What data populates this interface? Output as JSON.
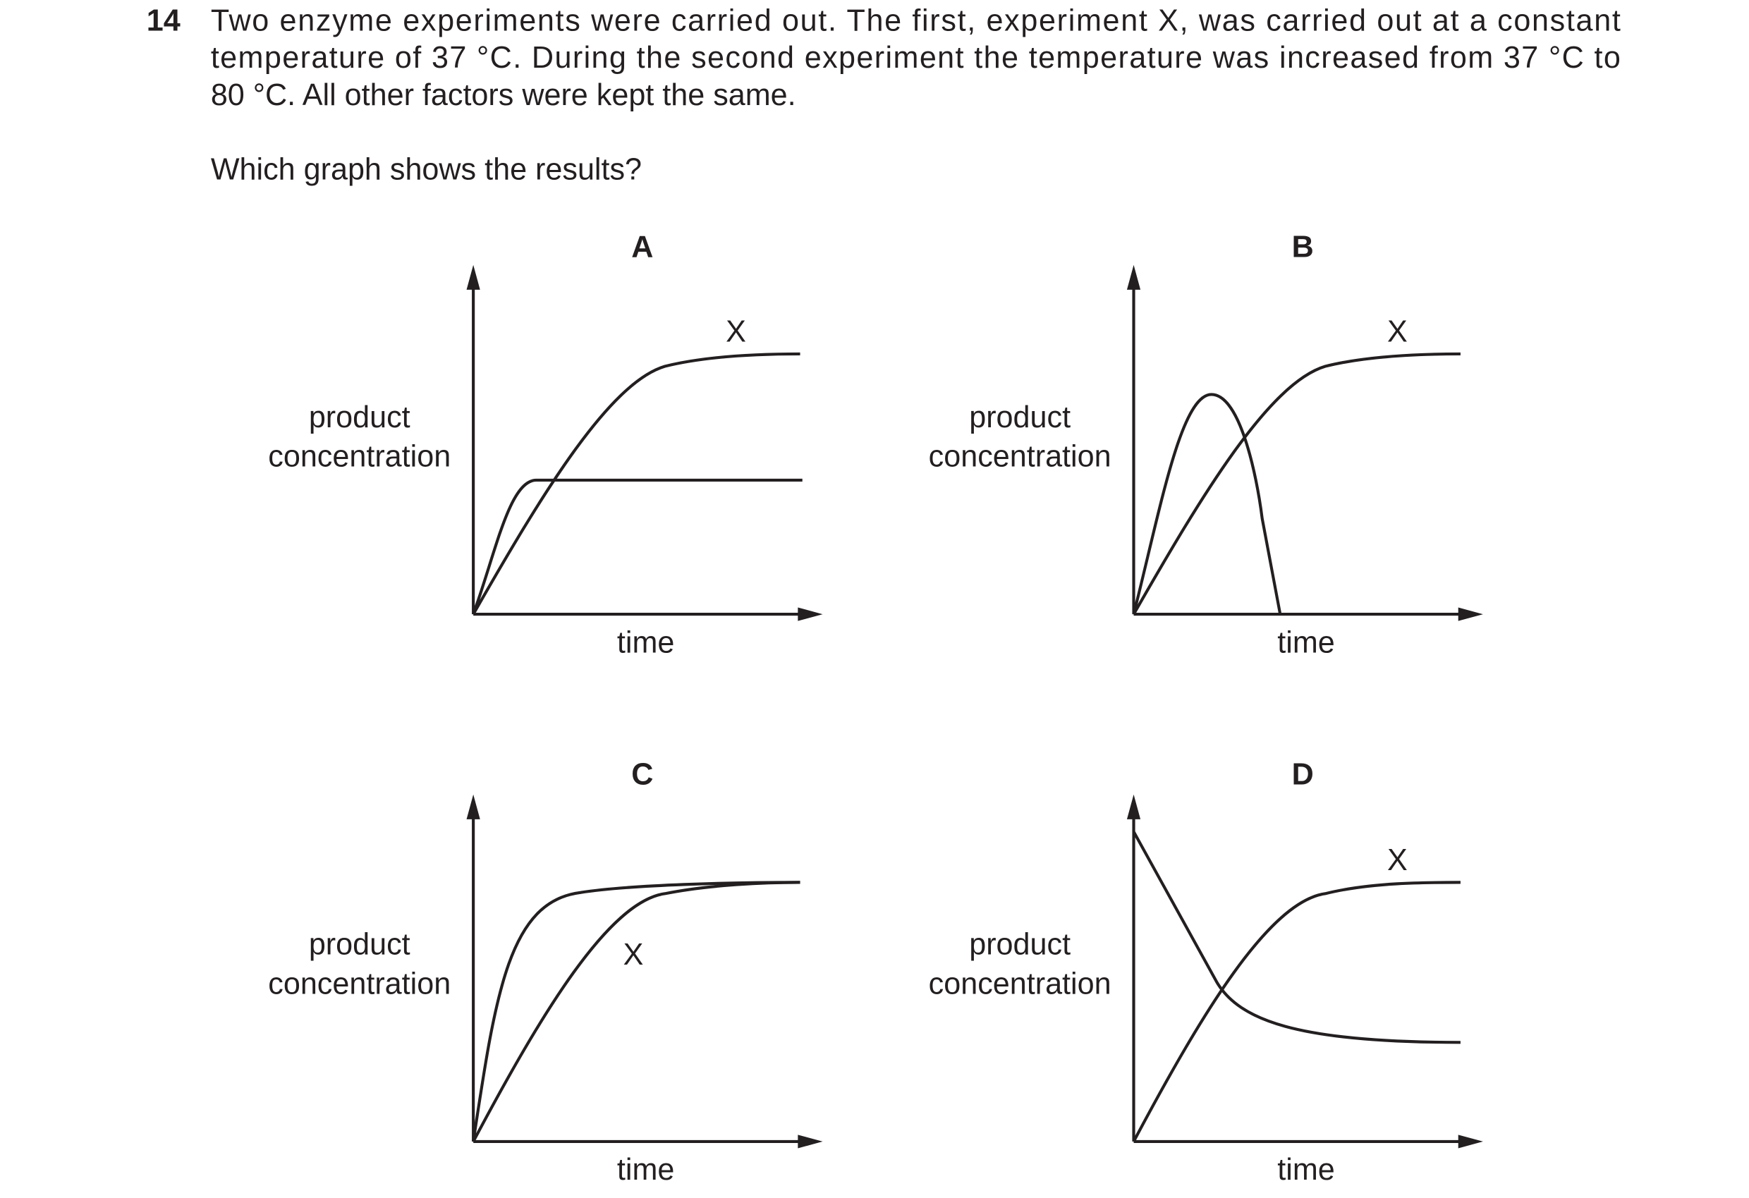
{
  "question": {
    "number": "14",
    "text_lines": [
      "Two enzyme experiments were carried out. The first, experiment X, was carried out at a constant",
      "temperature of 37 °C. During the second experiment the temperature was increased from 37 °C to",
      "80 °C. All other factors were kept the same."
    ],
    "prompt": "Which graph shows the results?"
  },
  "graphs": [
    {
      "label": "A",
      "y_label": [
        "product",
        "concentration"
      ],
      "x_label": "time",
      "curve_label": "X"
    },
    {
      "label": "B",
      "y_label": [
        "product",
        "concentration"
      ],
      "x_label": "time",
      "curve_label": "X"
    },
    {
      "label": "C",
      "y_label": [
        "product",
        "concentration"
      ],
      "x_label": "time",
      "curve_label": "X"
    },
    {
      "label": "D",
      "y_label": [
        "product",
        "concentration"
      ],
      "x_label": "time",
      "curve_label": "X"
    }
  ]
}
